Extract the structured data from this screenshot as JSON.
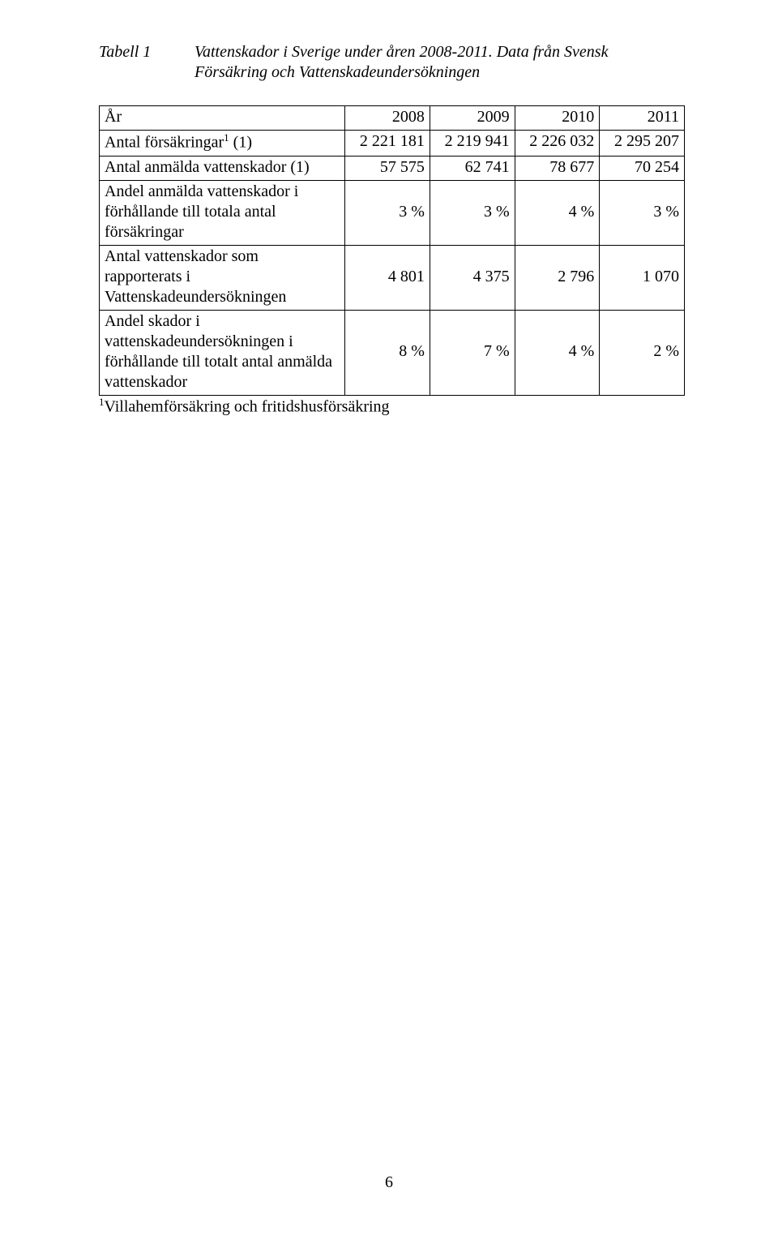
{
  "caption": {
    "label": "Tabell 1",
    "text_line1": "Vattenskador i Sverige under åren 2008-2011. Data från Svensk",
    "text_line2": "Försäkring och Vattenskadeundersökningen"
  },
  "table": {
    "header": {
      "col0": "År",
      "years": [
        "2008",
        "2009",
        "2010",
        "2011"
      ]
    },
    "rows": [
      {
        "label_html": "Antal försäkringar<sup class=\"s\">1</sup> (1)",
        "cells": [
          "2 221 181",
          "2 219 941",
          "2 226 032",
          "2 295 207"
        ]
      },
      {
        "label_html": "Antal anmälda vattenskador (1)",
        "cells": [
          "57 575",
          "62 741",
          "78 677",
          "70 254"
        ]
      },
      {
        "label_html": "Andel anmälda vattenskador i förhållande till totala antal försäkringar",
        "cells": [
          "3 %",
          "3 %",
          "4 %",
          "3 %"
        ],
        "vcenter": true
      },
      {
        "label_html": "Antal vattenskador som rapporterats i Vattenskadeundersökningen",
        "cells": [
          "4 801",
          "4 375",
          "2 796",
          "1 070"
        ],
        "vcenter": true
      },
      {
        "label_html": "Andel skador i vattenskadeundersökningen i förhållande till totalt antal anmälda vattenskador",
        "cells": [
          "8 %",
          "7 %",
          "4 %",
          "2 %"
        ],
        "vcenter": true
      }
    ]
  },
  "footnote": {
    "sup": "1",
    "text": "Villahemförsäkring och fritidshusförsäkring"
  },
  "pagenum": "6",
  "style": {
    "font_family": "Times New Roman",
    "font_size_pt": 15,
    "border_color": "#000000",
    "background": "#ffffff",
    "text_color": "#000000"
  }
}
